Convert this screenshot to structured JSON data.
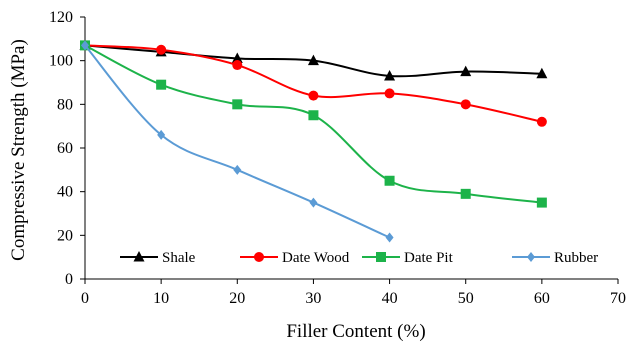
{
  "chart_data": {
    "type": "line",
    "title": "",
    "xlabel": "Filler Content (%)",
    "ylabel": "Compressive Strength (MPa)",
    "xlim": [
      0,
      70
    ],
    "ylim": [
      0,
      120
    ],
    "xticks": [
      0,
      10,
      20,
      30,
      40,
      50,
      60,
      70
    ],
    "yticks": [
      0,
      20,
      40,
      60,
      80,
      100,
      120
    ],
    "xtick_labels": [
      "0",
      "10",
      "20",
      "30",
      "40",
      "50",
      "60",
      "70"
    ],
    "ytick_labels": [
      "0",
      "20",
      "40",
      "60",
      "80",
      "100",
      "120"
    ],
    "grid": false,
    "smooth": true,
    "legend_position": "bottom-inside",
    "series": [
      {
        "name": "Shale",
        "color": "#000000",
        "marker": "triangle",
        "x": [
          0,
          10,
          20,
          30,
          40,
          50,
          60
        ],
        "y": [
          107,
          104,
          101,
          100,
          93,
          95,
          94
        ]
      },
      {
        "name": "Date Wood",
        "color": "#ff0000",
        "marker": "circle",
        "x": [
          0,
          10,
          20,
          30,
          40,
          50,
          60
        ],
        "y": [
          107,
          105,
          98,
          84,
          85,
          80,
          72
        ]
      },
      {
        "name": "Date Pit",
        "color": "#1db34a",
        "marker": "square",
        "x": [
          0,
          10,
          20,
          30,
          40,
          50,
          60
        ],
        "y": [
          107,
          89,
          80,
          75,
          45,
          39,
          35
        ]
      },
      {
        "name": "Rubber",
        "color": "#5b9bd5",
        "marker": "diamond",
        "x": [
          0,
          10,
          20,
          30,
          40
        ],
        "y": [
          107,
          66,
          50,
          35,
          19
        ]
      }
    ]
  }
}
